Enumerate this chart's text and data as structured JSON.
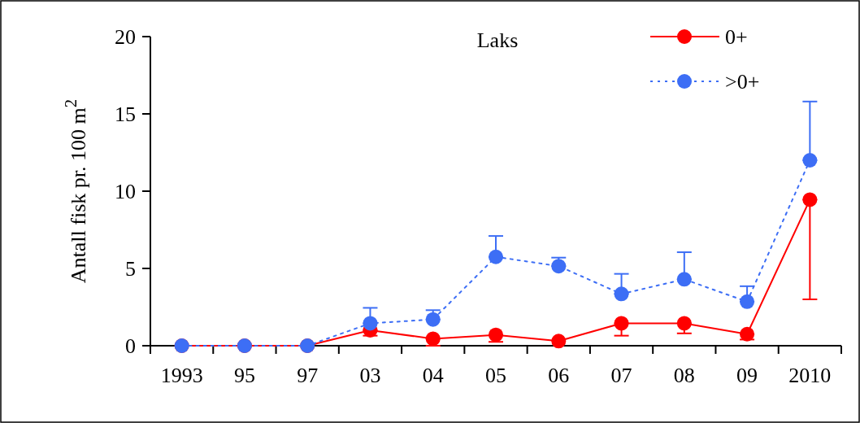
{
  "chart_data": {
    "type": "line",
    "title": "Laks",
    "ylabel": "Antall fisk pr. 100 m$^{2}$",
    "categories": [
      "1993",
      "95",
      "97",
      "03",
      "04",
      "05",
      "06",
      "07",
      "08",
      "09",
      "2010"
    ],
    "series": [
      {
        "name": "0+",
        "color": "#ff0000",
        "line_style": "solid",
        "values": [
          0,
          0,
          0,
          1.0,
          0.45,
          0.7,
          0.3,
          1.45,
          1.45,
          0.75,
          9.45
        ],
        "errors": [
          null,
          null,
          null,
          [
            0.65,
            1.0
          ],
          [
            0.0,
            0.45
          ],
          [
            0.25,
            0.7
          ],
          null,
          [
            0.65,
            1.45
          ],
          [
            0.8,
            1.45
          ],
          [
            0.4,
            0.75
          ],
          [
            3.0,
            9.45
          ]
        ]
      },
      {
        "name": ">0+",
        "color": "#3d6ef5",
        "line_style": "dotted",
        "values": [
          0,
          0,
          0,
          1.45,
          1.7,
          5.75,
          5.15,
          3.35,
          4.3,
          2.85,
          12.0
        ],
        "errors": [
          null,
          null,
          null,
          [
            1.45,
            2.45
          ],
          [
            1.7,
            2.3
          ],
          [
            5.75,
            7.1
          ],
          [
            5.15,
            5.7
          ],
          [
            3.35,
            4.65
          ],
          [
            4.3,
            6.05
          ],
          [
            2.85,
            3.85
          ],
          [
            12.0,
            15.8
          ]
        ]
      }
    ],
    "ylim": [
      0,
      20
    ],
    "yticks": [
      0,
      5,
      10,
      15,
      20
    ],
    "grid": false,
    "legend": "top right",
    "marker": "circle"
  }
}
